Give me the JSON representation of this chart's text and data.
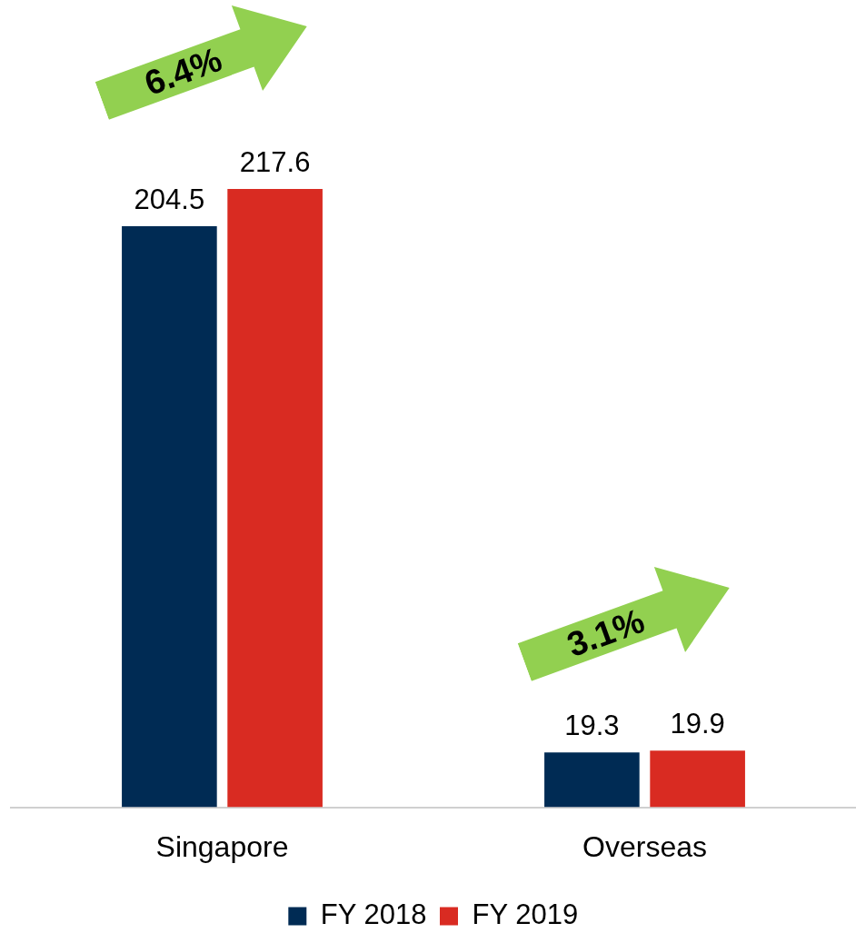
{
  "chart_data": {
    "type": "bar",
    "categories": [
      "Singapore",
      "Overseas"
    ],
    "series": [
      {
        "name": "FY 2018",
        "color": "#002b54",
        "values": [
          204.5,
          19.3
        ]
      },
      {
        "name": "FY 2019",
        "color": "#d92b22",
        "values": [
          217.6,
          19.9
        ]
      }
    ],
    "data_labels": true,
    "grid": false,
    "legend": "bottom",
    "annotations": [
      "6.4%",
      "3.1%"
    ]
  }
}
